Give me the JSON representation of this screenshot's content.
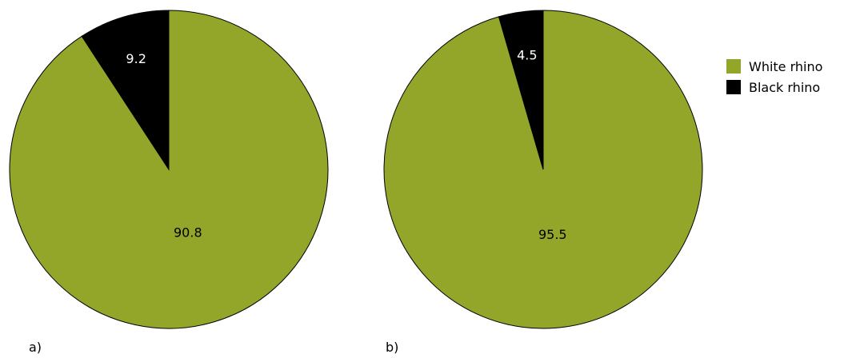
{
  "colors": {
    "white_rhino": "#93a629",
    "black_rhino": "#000000",
    "outline": "#000000"
  },
  "legend": [
    {
      "label": "White rhino",
      "color": "#93a629"
    },
    {
      "label": "Black rhino",
      "color": "#000000"
    }
  ],
  "chart_data": [
    {
      "type": "pie",
      "panel_label": "a)",
      "slices": [
        {
          "name": "White rhino",
          "value": 90.8,
          "label": "90.8"
        },
        {
          "name": "Black rhino",
          "value": 9.2,
          "label": "9.2"
        }
      ]
    },
    {
      "type": "pie",
      "panel_label": "b)",
      "slices": [
        {
          "name": "White rhino",
          "value": 95.5,
          "label": "95.5"
        },
        {
          "name": "Black rhino",
          "value": 4.5,
          "label": "4.5"
        }
      ]
    }
  ]
}
